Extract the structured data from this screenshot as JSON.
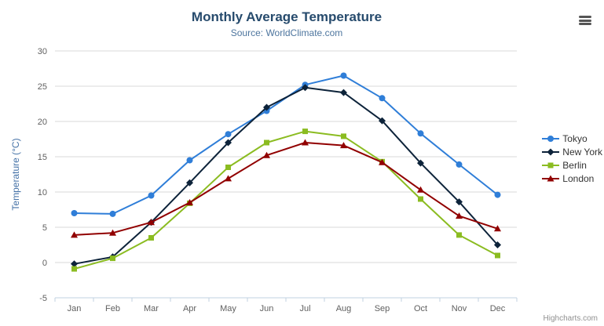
{
  "header": {
    "title": "Monthly Average Temperature",
    "subtitle": "Source: WorldClimate.com"
  },
  "icons": {
    "menu_icon": "hamburger-export-menu"
  },
  "chart_data": {
    "type": "line",
    "title": "Monthly Average Temperature",
    "subtitle": "Source: WorldClimate.com",
    "categories": [
      "Jan",
      "Feb",
      "Mar",
      "Apr",
      "May",
      "Jun",
      "Jul",
      "Aug",
      "Sep",
      "Oct",
      "Nov",
      "Dec"
    ],
    "xlabel": "",
    "ylabel": "Temperature (°C)",
    "ylim": [
      -5,
      30
    ],
    "ytick_step": 5,
    "grid": true,
    "legend_position": "right",
    "series": [
      {
        "name": "Tokyo",
        "color": "#2f7ed8",
        "marker": "circle",
        "values": [
          7.0,
          6.9,
          9.5,
          14.5,
          18.2,
          21.5,
          25.2,
          26.5,
          23.3,
          18.3,
          13.9,
          9.6
        ]
      },
      {
        "name": "New York",
        "color": "#0d233a",
        "marker": "diamond",
        "values": [
          -0.2,
          0.8,
          5.7,
          11.3,
          17.0,
          22.0,
          24.8,
          24.1,
          20.1,
          14.1,
          8.6,
          2.5
        ]
      },
      {
        "name": "Berlin",
        "color": "#8bbc21",
        "marker": "square",
        "values": [
          -0.9,
          0.6,
          3.5,
          8.4,
          13.5,
          17.0,
          18.6,
          17.9,
          14.3,
          9.0,
          3.9,
          1.0
        ]
      },
      {
        "name": "London",
        "color": "#910000",
        "marker": "triangle",
        "values": [
          3.9,
          4.2,
          5.7,
          8.5,
          11.9,
          15.2,
          17.0,
          16.6,
          14.2,
          10.3,
          6.6,
          4.8
        ]
      }
    ]
  },
  "axis_colors": {
    "grid_line": "#d8d8d8",
    "axis_line": "#c0d0e0",
    "tick_label": "#606060",
    "axis_title": "#4572a7"
  },
  "credits": {
    "label": "Highcharts.com"
  }
}
